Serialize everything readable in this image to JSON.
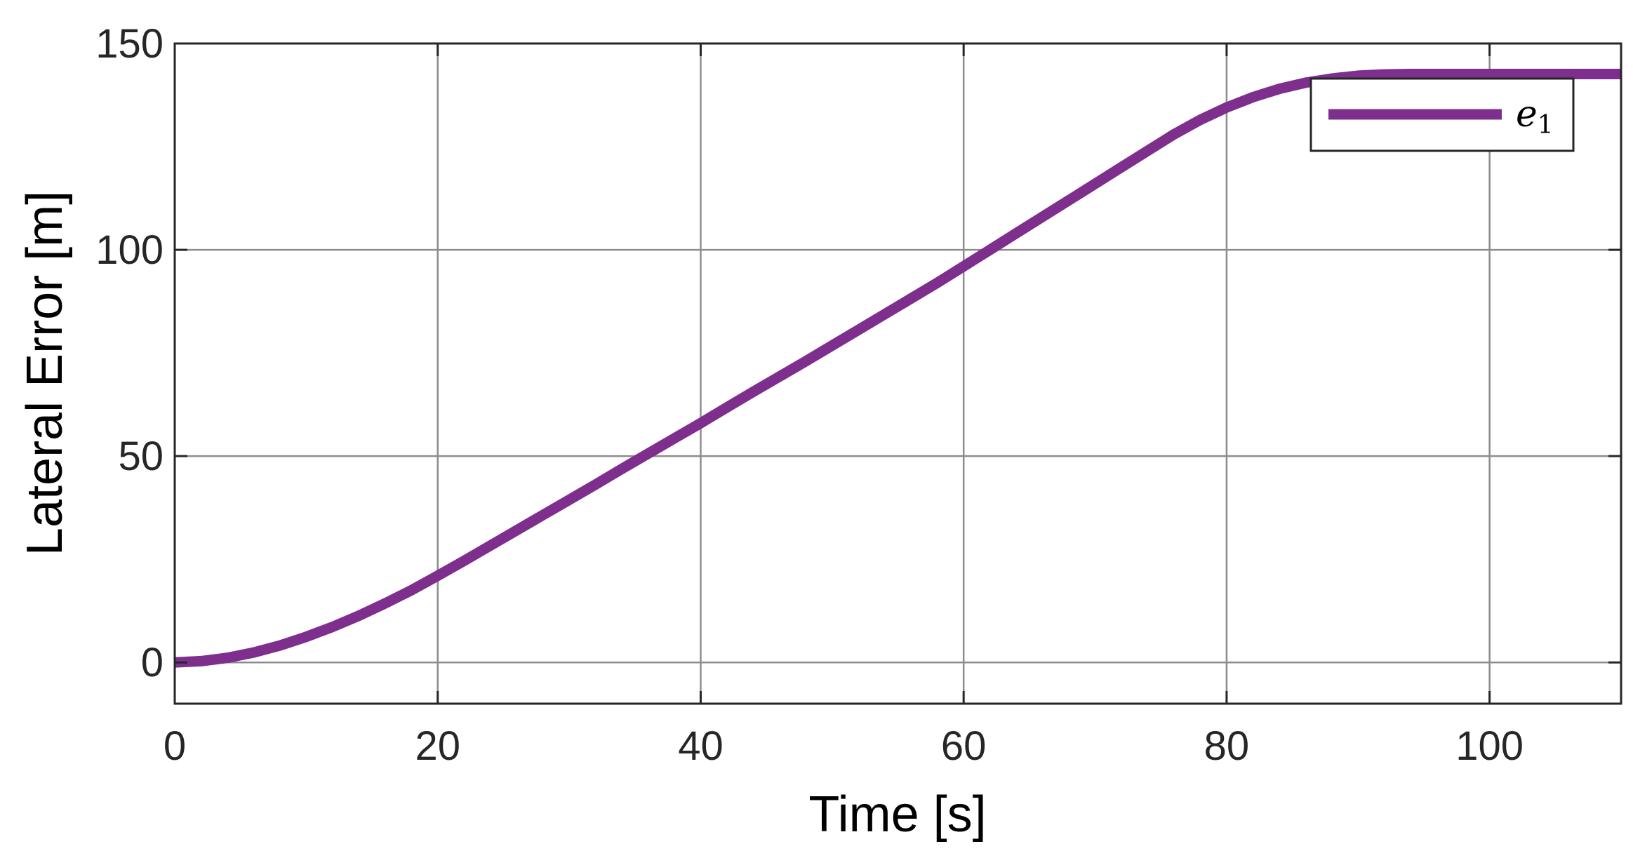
{
  "chart_data": {
    "type": "line",
    "xlabel": "Time [s]",
    "ylabel": "Lateral Error [m]",
    "xlim": [
      0,
      110
    ],
    "ylim": [
      -10,
      150
    ],
    "xticks": [
      0,
      20,
      40,
      60,
      80,
      100
    ],
    "yticks": [
      0,
      50,
      100,
      150
    ],
    "grid": true,
    "legend_position": "top-right",
    "colors": {
      "series": "#7E2F8E",
      "grid": "#8c8c8c",
      "axes": "#262626"
    },
    "series": [
      {
        "name": "e",
        "name_subscript": "1",
        "x": [
          0,
          2,
          4,
          6,
          8,
          10,
          12,
          14,
          16,
          18,
          20,
          22,
          24,
          26,
          28,
          30,
          32,
          34,
          36,
          38,
          40,
          42,
          44,
          46,
          48,
          50,
          52,
          54,
          56,
          58,
          60,
          62,
          64,
          66,
          68,
          70,
          72,
          74,
          76,
          78,
          80,
          82,
          84,
          86,
          88,
          90,
          92,
          94,
          96,
          98,
          100,
          105,
          110
        ],
        "y": [
          0,
          0.3,
          1.1,
          2.4,
          4.1,
          6.2,
          8.6,
          11.3,
          14.3,
          17.5,
          21,
          24.6,
          28.3,
          32,
          35.7,
          39.4,
          43.1,
          46.9,
          50.6,
          54.3,
          58,
          61.8,
          65.6,
          69.3,
          73,
          76.8,
          80.6,
          84.4,
          88.2,
          92,
          96,
          100,
          104,
          108,
          112,
          116,
          120,
          124,
          128,
          131.5,
          134.5,
          137,
          139,
          140.5,
          141.5,
          142.2,
          142.5,
          142.6,
          142.6,
          142.6,
          142.6,
          142.6,
          142.6
        ]
      }
    ]
  }
}
